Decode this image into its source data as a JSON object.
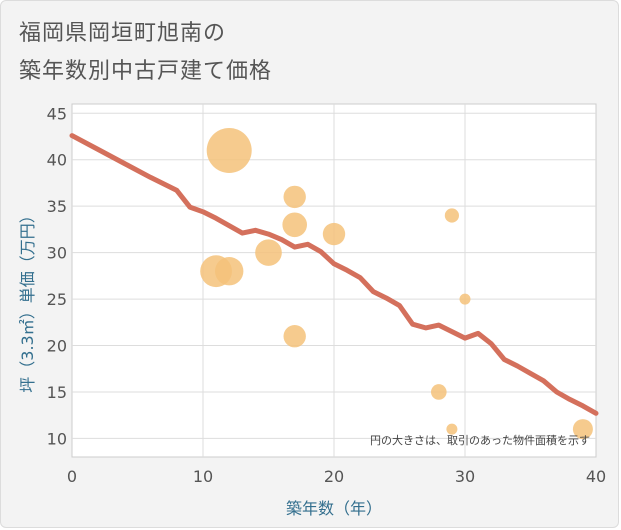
{
  "chart_data": {
    "type": "scatter",
    "title_line1": "福岡県岡垣町旭南の",
    "title_line2": "築年数別中古戸建て価格",
    "xlabel": "築年数（年）",
    "ylabel": "坪（3.3㎡）単価（万円）",
    "xlim": [
      0,
      40
    ],
    "ylim": [
      8,
      46
    ],
    "x_ticks": [
      0,
      10,
      20,
      30,
      40
    ],
    "y_ticks": [
      10,
      15,
      20,
      25,
      30,
      35,
      40,
      45
    ],
    "note": "円の大きさは、取引のあった物件面積を示す",
    "colors": {
      "bubble": "#f5c27a",
      "trend": "#d4705c",
      "axis_text": "#336f8e"
    },
    "points": [
      {
        "x": 12,
        "y": 41,
        "size": 10
      },
      {
        "x": 11,
        "y": 28,
        "size": 5
      },
      {
        "x": 12,
        "y": 28,
        "size": 4
      },
      {
        "x": 15,
        "y": 30,
        "size": 3.5
      },
      {
        "x": 17,
        "y": 36,
        "size": 2.5
      },
      {
        "x": 17,
        "y": 33,
        "size": 3
      },
      {
        "x": 17,
        "y": 21,
        "size": 2.5
      },
      {
        "x": 20,
        "y": 32,
        "size": 2.5
      },
      {
        "x": 29,
        "y": 34,
        "size": 1
      },
      {
        "x": 30,
        "y": 25,
        "size": 0.6
      },
      {
        "x": 28,
        "y": 15,
        "size": 1.2
      },
      {
        "x": 29,
        "y": 11,
        "size": 0.6
      },
      {
        "x": 39,
        "y": 11,
        "size": 2
      }
    ],
    "trend": [
      [
        0,
        42.6
      ],
      [
        2,
        41.1
      ],
      [
        4,
        39.6
      ],
      [
        6,
        38.1
      ],
      [
        8,
        36.7
      ],
      [
        9,
        34.9
      ],
      [
        10,
        34.4
      ],
      [
        11,
        33.7
      ],
      [
        12,
        32.9
      ],
      [
        13,
        32.1
      ],
      [
        14,
        32.4
      ],
      [
        15,
        32.0
      ],
      [
        16,
        31.4
      ],
      [
        17,
        30.6
      ],
      [
        18,
        30.9
      ],
      [
        19,
        30.1
      ],
      [
        20,
        28.8
      ],
      [
        21,
        28.1
      ],
      [
        22,
        27.3
      ],
      [
        23,
        25.8
      ],
      [
        24,
        25.1
      ],
      [
        25,
        24.3
      ],
      [
        26,
        22.3
      ],
      [
        27,
        21.9
      ],
      [
        28,
        22.2
      ],
      [
        29,
        21.5
      ],
      [
        30,
        20.8
      ],
      [
        31,
        21.3
      ],
      [
        32,
        20.2
      ],
      [
        33,
        18.5
      ],
      [
        34,
        17.8
      ],
      [
        35,
        17.0
      ],
      [
        36,
        16.2
      ],
      [
        37,
        15.0
      ],
      [
        38,
        14.2
      ],
      [
        39,
        13.5
      ],
      [
        40,
        12.7
      ]
    ]
  }
}
